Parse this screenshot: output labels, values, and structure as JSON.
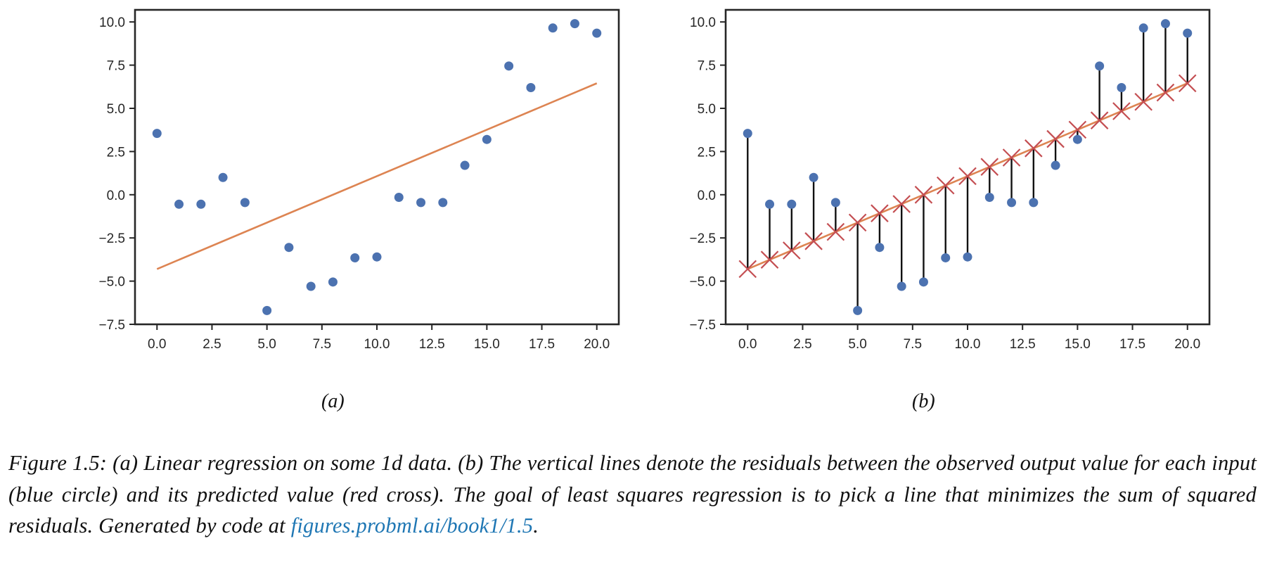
{
  "figure": {
    "subfigure_labels": [
      "(a)",
      "(b)"
    ],
    "caption": {
      "text": "Figure 1.5: (a) Linear regression on some 1d data.  (b) The vertical lines denote the residuals between the observed output value for each input (blue circle) and its predicted value (red cross). The goal of least squares regression is to pick a line that minimizes the sum of squared residuals.  Generated by code at ",
      "link_text": "figures.probml.ai/book1/1.5",
      "trailing": "."
    }
  },
  "colors": {
    "points": "#4c72b0",
    "fit_line": "#dd8452",
    "residuals": "#111111",
    "predictions": "#c44e52",
    "link": "#1f77b4"
  },
  "chart_data": [
    {
      "type": "scatter",
      "panel": "(a)",
      "title": "",
      "xlabel": "",
      "ylabel": "",
      "xlim": [
        -1,
        21
      ],
      "ylim": [
        -7.5,
        10.7
      ],
      "xticks": [
        "0.0",
        "2.5",
        "5.0",
        "7.5",
        "10.0",
        "12.5",
        "15.0",
        "17.5",
        "20.0"
      ],
      "yticks": [
        "10.0",
        "7.5",
        "5.0",
        "2.5",
        "0.0",
        "−2.5",
        "−5.0",
        "−7.5"
      ],
      "grid": false,
      "x": [
        0,
        1,
        2,
        3,
        4,
        5,
        6,
        7,
        8,
        9,
        10,
        11,
        12,
        13,
        14,
        15,
        16,
        17,
        18,
        19,
        20
      ],
      "y": [
        3.55,
        -0.55,
        -0.55,
        1.0,
        -0.45,
        -6.7,
        -3.05,
        -5.3,
        -5.05,
        -3.65,
        -3.6,
        -0.15,
        -0.45,
        -0.45,
        1.7,
        3.2,
        7.45,
        6.2,
        9.65,
        9.9,
        9.35
      ],
      "fit_line": {
        "x": [
          0,
          20
        ],
        "y": [
          -4.3,
          6.45
        ]
      }
    },
    {
      "type": "scatter",
      "panel": "(b)",
      "title": "",
      "xlabel": "",
      "ylabel": "",
      "xlim": [
        -1,
        21
      ],
      "ylim": [
        -7.5,
        10.7
      ],
      "xticks": [
        "0.0",
        "2.5",
        "5.0",
        "7.5",
        "10.0",
        "12.5",
        "15.0",
        "17.5",
        "20.0"
      ],
      "yticks": [
        "10.0",
        "7.5",
        "5.0",
        "2.5",
        "0.0",
        "−2.5",
        "−5.0",
        "−7.5"
      ],
      "grid": false,
      "x": [
        0,
        1,
        2,
        3,
        4,
        5,
        6,
        7,
        8,
        9,
        10,
        11,
        12,
        13,
        14,
        15,
        16,
        17,
        18,
        19,
        20
      ],
      "y": [
        3.55,
        -0.55,
        -0.55,
        1.0,
        -0.45,
        -6.7,
        -3.05,
        -5.3,
        -5.05,
        -3.65,
        -3.6,
        -0.15,
        -0.45,
        -0.45,
        1.7,
        3.2,
        7.45,
        6.2,
        9.65,
        9.9,
        9.35
      ],
      "fit_line": {
        "x": [
          0,
          20
        ],
        "y": [
          -4.3,
          6.45
        ]
      },
      "show_residuals": true,
      "show_predictions": true
    }
  ]
}
